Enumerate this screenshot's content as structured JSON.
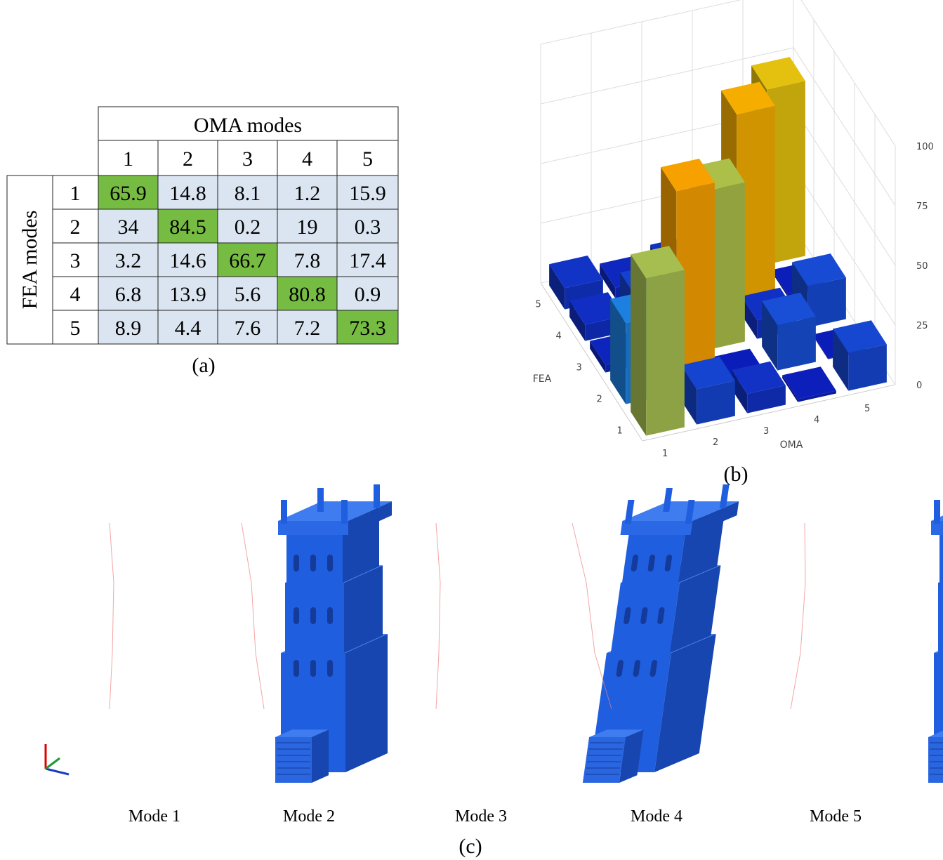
{
  "panel_a": {
    "caption": "(a)",
    "table": {
      "column_header": "OMA modes",
      "row_header": "FEA modes",
      "columns": [
        1,
        2,
        3,
        4,
        5
      ],
      "rows": [
        {
          "label": 1,
          "values": [
            65.9,
            14.8,
            8.1,
            1.2,
            15.9
          ]
        },
        {
          "label": 2,
          "values": [
            34,
            84.5,
            0.2,
            19,
            0.3
          ]
        },
        {
          "label": 3,
          "values": [
            3.2,
            14.6,
            66.7,
            7.8,
            17.4
          ]
        },
        {
          "label": 4,
          "values": [
            6.8,
            13.9,
            5.6,
            80.8,
            0.9
          ]
        },
        {
          "label": 5,
          "values": [
            8.9,
            4.4,
            7.6,
            7.2,
            73.3
          ]
        }
      ]
    }
  },
  "chart_data": {
    "type": "bar3d",
    "caption": "(b)",
    "x_label": "OMA",
    "y_label": "FEA",
    "x_categories": [
      1,
      2,
      3,
      4,
      5
    ],
    "y_categories": [
      1,
      2,
      3,
      4,
      5
    ],
    "values": [
      [
        65.9,
        14.8,
        8.1,
        1.2,
        15.9
      ],
      [
        34,
        84.5,
        0.2,
        19,
        0.3
      ],
      [
        3.2,
        14.6,
        66.7,
        7.8,
        17.4
      ],
      [
        6.8,
        13.9,
        5.6,
        80.8,
        0.9
      ],
      [
        8.9,
        4.4,
        7.6,
        7.2,
        73.3
      ]
    ],
    "zlim": [
      0,
      100
    ],
    "zticks": [
      0,
      25,
      50,
      75,
      100
    ],
    "grid": true,
    "colors": [
      "#0b1cb8",
      "#1c5fe0",
      "#20b8dc",
      "#f2c200",
      "#ff6a00"
    ]
  },
  "panel_c": {
    "caption": "(c)",
    "modes": [
      "Mode 1",
      "Mode 2",
      "Mode 3",
      "Mode 4",
      "Mode 5"
    ]
  }
}
